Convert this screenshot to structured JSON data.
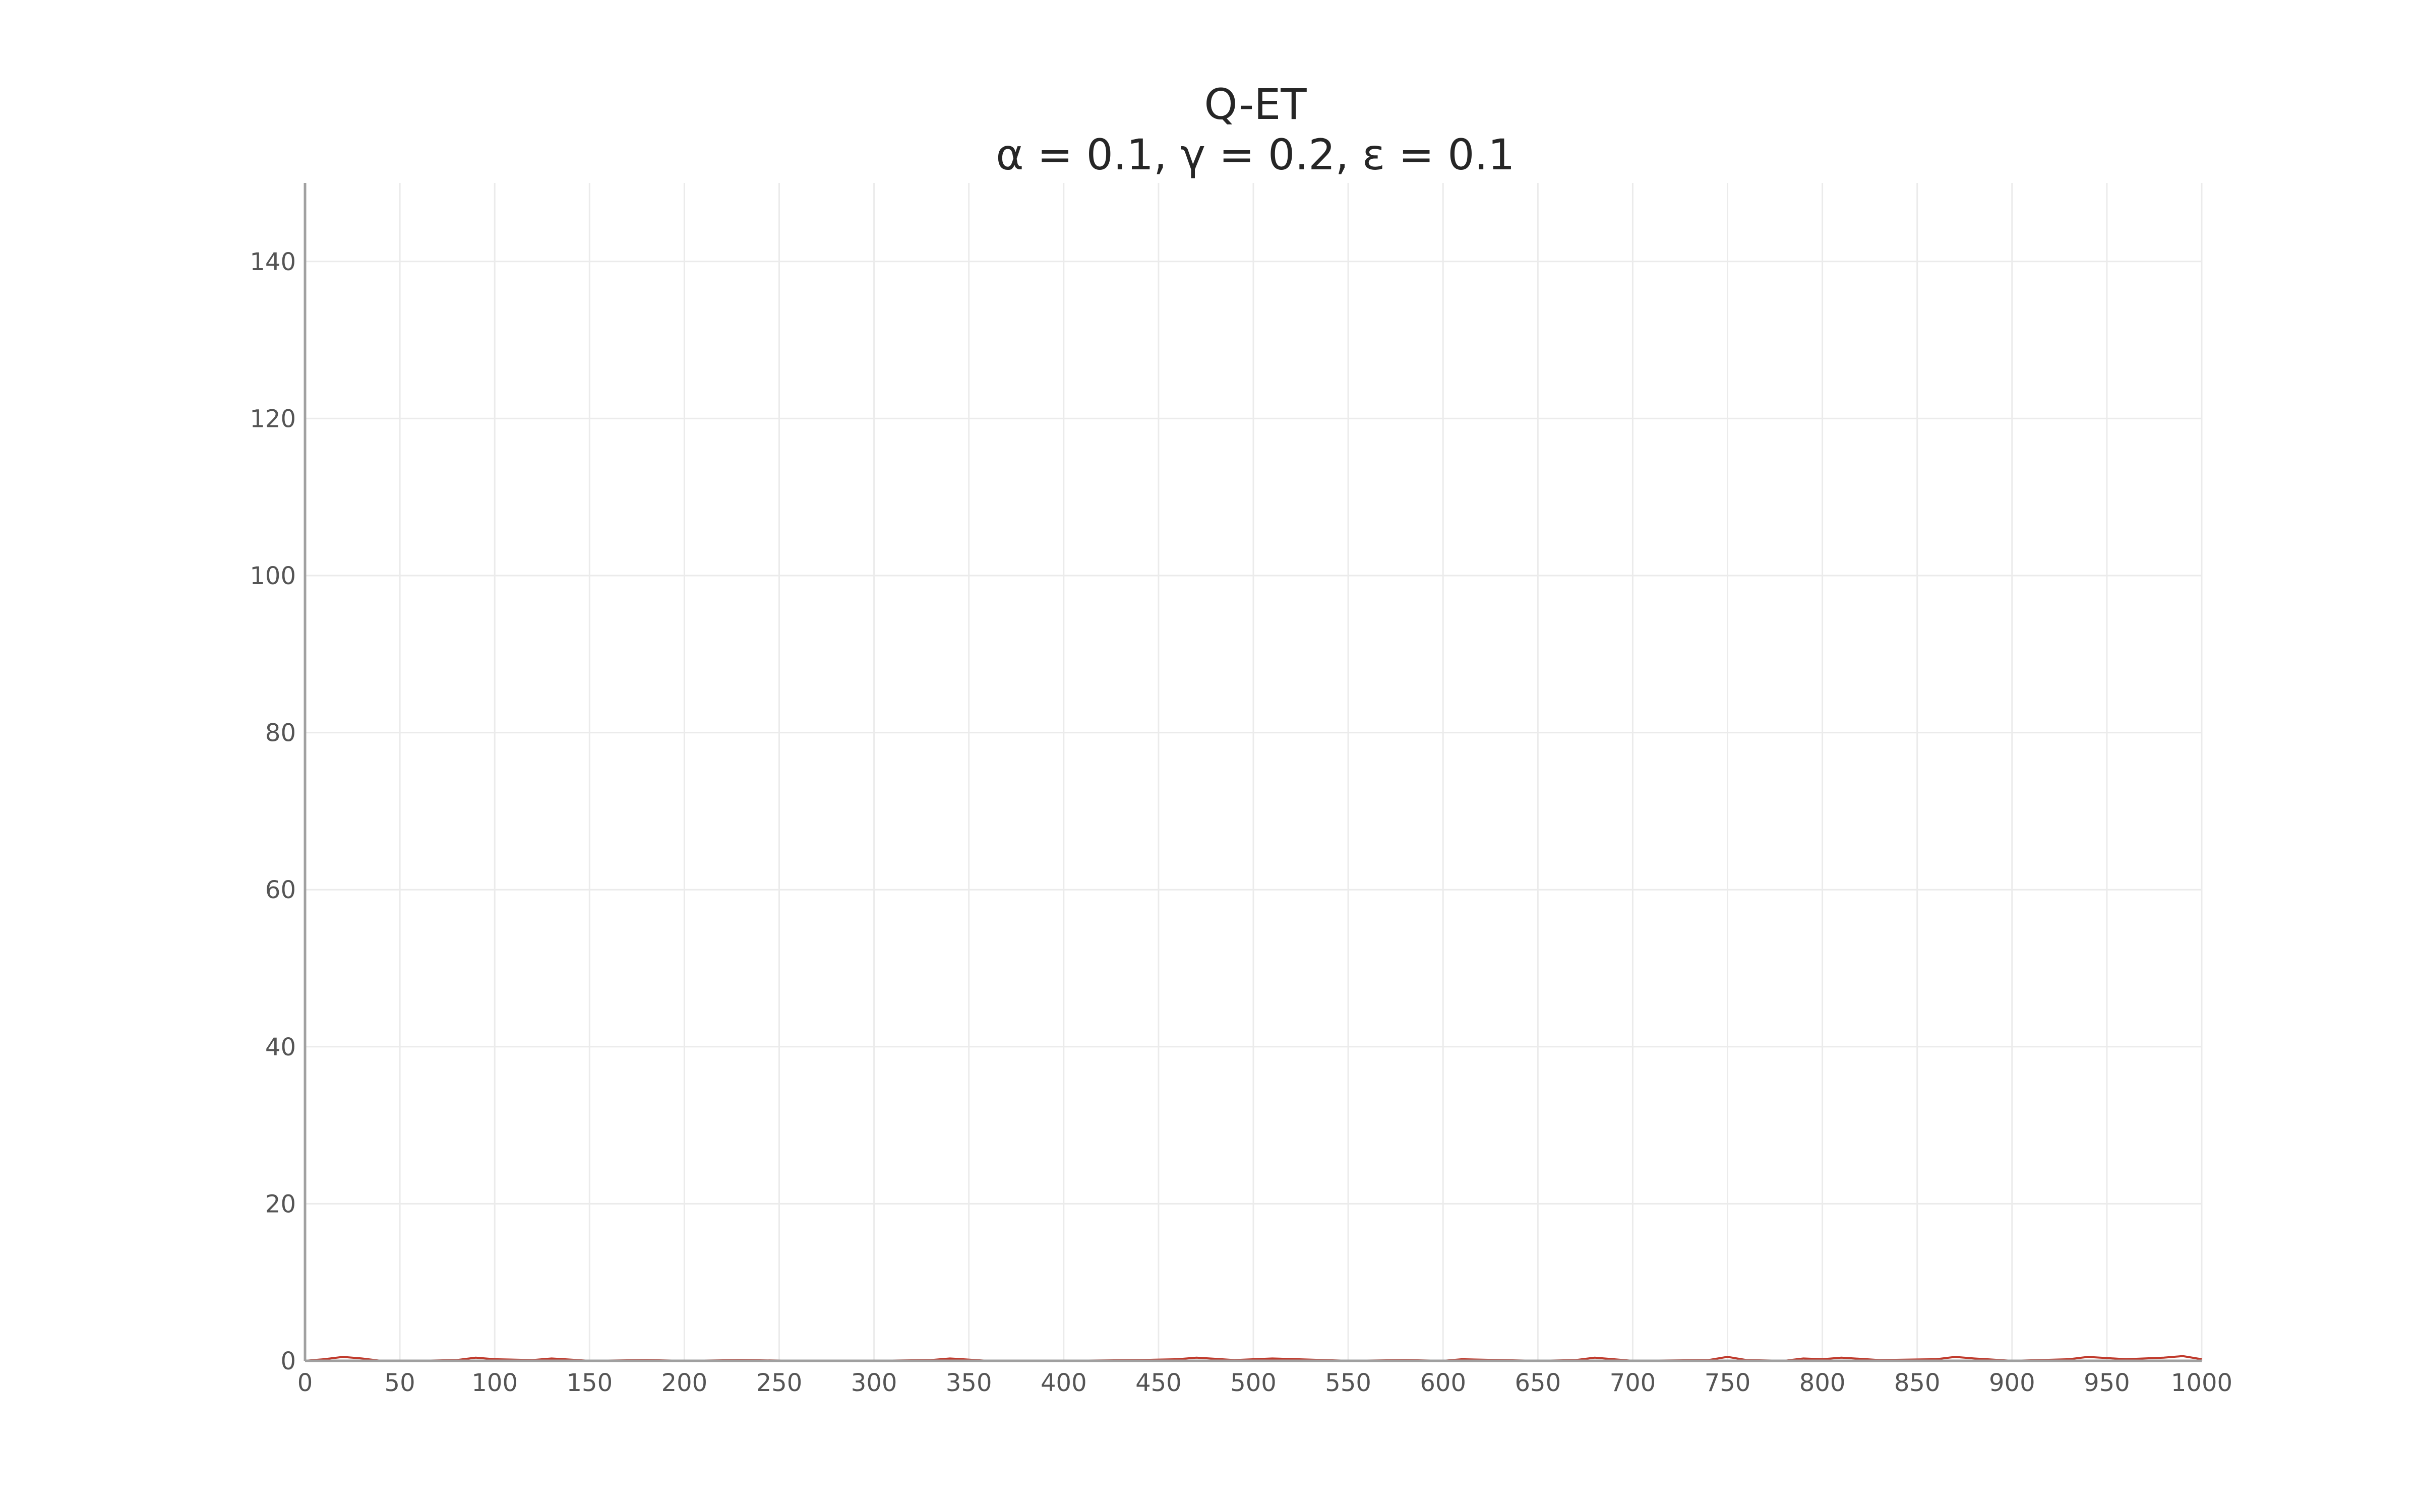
{
  "chart_data": {
    "type": "line",
    "title": "Q-ET",
    "subtitle": "α = 0.1, γ = 0.2, ε = 0.1",
    "xlabel": "",
    "ylabel": "",
    "xlim": [
      0,
      1000
    ],
    "ylim": [
      0,
      150
    ],
    "x_ticks": [
      0,
      50,
      100,
      150,
      200,
      250,
      300,
      350,
      400,
      450,
      500,
      550,
      600,
      650,
      700,
      750,
      800,
      850,
      900,
      950,
      1000
    ],
    "y_ticks": [
      0,
      20,
      40,
      60,
      80,
      100,
      120,
      140
    ],
    "grid": true,
    "legend": "none",
    "series": [
      {
        "color": "#c0392b",
        "x": [
          0,
          10,
          20,
          30,
          40,
          60,
          80,
          90,
          100,
          120,
          130,
          150,
          180,
          200,
          230,
          260,
          300,
          330,
          340,
          360,
          400,
          440,
          460,
          470,
          490,
          510,
          550,
          580,
          600,
          610,
          650,
          670,
          680,
          700,
          740,
          750,
          760,
          780,
          790,
          800,
          810,
          830,
          860,
          870,
          880,
          900,
          930,
          940,
          960,
          980,
          990,
          1000
        ],
        "values": [
          0,
          0.2,
          0.5,
          0.3,
          0,
          0,
          0.1,
          0.4,
          0.2,
          0.1,
          0.3,
          0,
          0.1,
          0,
          0.1,
          0,
          0,
          0.1,
          0.3,
          0,
          0,
          0.1,
          0.2,
          0.4,
          0.1,
          0.3,
          0,
          0.1,
          0,
          0.2,
          0,
          0.1,
          0.4,
          0,
          0.1,
          0.5,
          0.1,
          0,
          0.3,
          0.2,
          0.4,
          0.1,
          0.2,
          0.5,
          0.3,
          0,
          0.2,
          0.5,
          0.2,
          0.4,
          0.6,
          0.2
        ]
      }
    ]
  }
}
